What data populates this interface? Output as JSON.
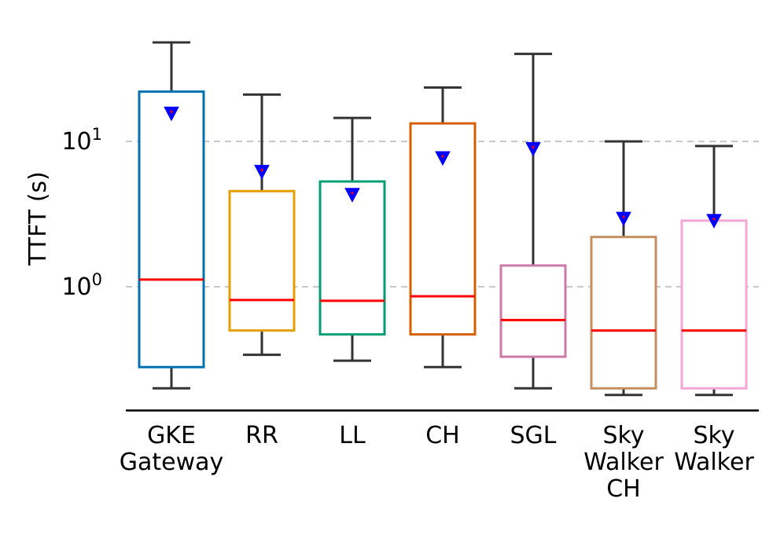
{
  "chart_data": {
    "type": "box",
    "ylabel": "TTFT (s)",
    "xlabel": "",
    "yscale": "log",
    "ylim": [
      0.15,
      100
    ],
    "grid": "y-dashed",
    "yticks": [
      {
        "value": 1,
        "base": "10",
        "exp": "0"
      },
      {
        "value": 10,
        "base": "10",
        "exp": "1"
      }
    ],
    "categories": [
      {
        "label_lines": [
          "GKE",
          "Gateway"
        ],
        "color": "#0072B2",
        "whisker_low": 0.2,
        "q1": 0.28,
        "median": 1.12,
        "q3": 22.0,
        "whisker_high": 48.0,
        "mean": 15.6
      },
      {
        "label_lines": [
          "RR"
        ],
        "color": "#E69F00",
        "whisker_low": 0.34,
        "q1": 0.5,
        "median": 0.81,
        "q3": 4.55,
        "whisker_high": 21.0,
        "mean": 6.2
      },
      {
        "label_lines": [
          "LL"
        ],
        "color": "#009E73",
        "whisker_low": 0.31,
        "q1": 0.47,
        "median": 0.8,
        "q3": 5.3,
        "whisker_high": 14.5,
        "mean": 4.3
      },
      {
        "label_lines": [
          "CH"
        ],
        "color": "#D55E00",
        "whisker_low": 0.28,
        "q1": 0.47,
        "median": 0.86,
        "q3": 13.3,
        "whisker_high": 23.5,
        "mean": 7.7
      },
      {
        "label_lines": [
          "SGL"
        ],
        "color": "#CC79A7",
        "whisker_low": 0.2,
        "q1": 0.33,
        "median": 0.59,
        "q3": 1.4,
        "whisker_high": 40.0,
        "mean": 8.9
      },
      {
        "label_lines": [
          "Sky",
          "Walker",
          "CH"
        ],
        "color": "#C48F62",
        "whisker_low": 0.18,
        "q1": 0.2,
        "median": 0.5,
        "q3": 2.2,
        "whisker_high": 10.0,
        "mean": 2.95
      },
      {
        "label_lines": [
          "Sky",
          "Walker"
        ],
        "color": "#F4A6D7",
        "whisker_low": 0.18,
        "q1": 0.2,
        "median": 0.5,
        "q3": 2.85,
        "whisker_high": 9.3,
        "mean": 2.85
      }
    ],
    "median_color": "#FF0000",
    "mean_marker_color": "#0000FF",
    "whisker_color": "#333333"
  }
}
